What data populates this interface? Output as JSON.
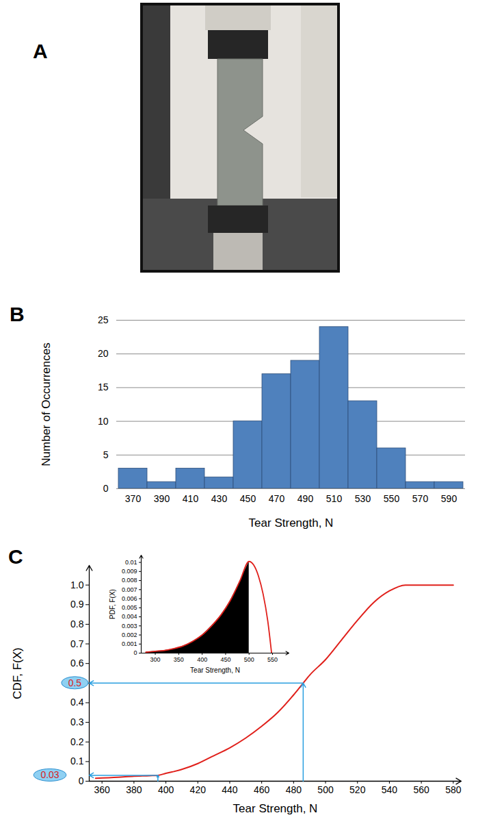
{
  "chart_data": [
    {
      "type": "image",
      "panel_label": "A"
    },
    {
      "type": "bar",
      "panel_label": "B",
      "categories": [
        "370",
        "390",
        "410",
        "430",
        "450",
        "470",
        "490",
        "510",
        "530",
        "550",
        "570",
        "590"
      ],
      "values": [
        3,
        1,
        3,
        1.7,
        10,
        17,
        19,
        24,
        13,
        6,
        1,
        1
      ],
      "color": "#4f81bd",
      "xlabel": "Tear Strength, N",
      "ylabel": "Number of Occurrences",
      "ylim": [
        0,
        25
      ],
      "yticks": [
        0,
        5,
        10,
        15,
        20,
        25
      ],
      "grid": true
    },
    {
      "type": "line",
      "panel_label": "C",
      "x": [
        356,
        370,
        380,
        390,
        395,
        400,
        410,
        420,
        430,
        440,
        450,
        460,
        470,
        480,
        486,
        490,
        500,
        510,
        520,
        530,
        540,
        550,
        560,
        570,
        580
      ],
      "values": [
        0.015,
        0.02,
        0.025,
        0.028,
        0.03,
        0.04,
        0.06,
        0.09,
        0.13,
        0.17,
        0.22,
        0.28,
        0.35,
        0.44,
        0.5,
        0.54,
        0.62,
        0.72,
        0.82,
        0.91,
        0.97,
        1.0,
        1.0,
        1.0,
        1.0
      ],
      "color": "#e0201b",
      "xlabel": "Tear Strength, N",
      "ylabel": "CDF, F(X)",
      "xlim": [
        352,
        585
      ],
      "xticks": [
        360,
        380,
        400,
        420,
        440,
        460,
        480,
        500,
        520,
        540,
        560,
        580
      ],
      "ylim": [
        0,
        1.1
      ],
      "yticks": [
        0,
        0.1,
        0.2,
        0.3,
        0.4,
        0.5,
        0.6,
        0.7,
        0.8,
        0.9,
        {
          "value": 1,
          "label": "1.0"
        }
      ],
      "annotations": [
        {
          "x": 486,
          "y": 0.5,
          "label": "0.5"
        },
        {
          "x": 395,
          "y": 0.03,
          "label": "0.03"
        }
      ],
      "inset": {
        "type": "line",
        "x": [
          280,
          300,
          320,
          340,
          360,
          380,
          400,
          420,
          440,
          460,
          480,
          500,
          510,
          520,
          530,
          540,
          548
        ],
        "values": [
          0.0001,
          0.0002,
          0.0003,
          0.0005,
          0.0008,
          0.0013,
          0.002,
          0.003,
          0.0042,
          0.0058,
          0.0079,
          0.0101,
          0.0097,
          0.0085,
          0.0065,
          0.0035,
          0
        ],
        "color": "#e0201b",
        "shaded_until": 500,
        "xlabel": "Tear Strength, N",
        "ylabel": "PDF, F(X)",
        "xlim": [
          270,
          585
        ],
        "xticks": [
          300,
          350,
          400,
          450,
          500,
          550
        ],
        "ylim": [
          0,
          0.0108
        ],
        "yticks": [
          0,
          0.001,
          0.002,
          0.003,
          0.004,
          0.005,
          0.006,
          0.007,
          0.008,
          0.009,
          0.01
        ]
      }
    }
  ]
}
